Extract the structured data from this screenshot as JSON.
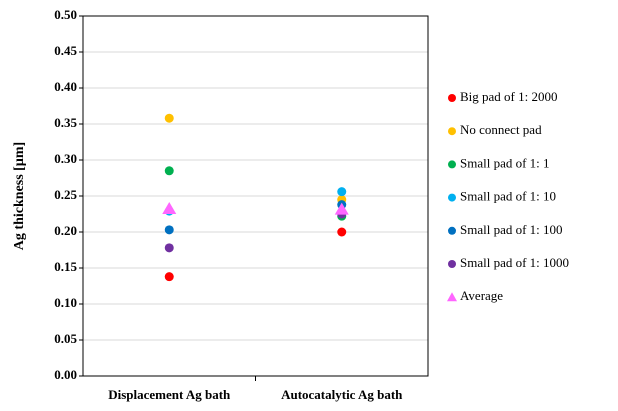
{
  "chart_data": {
    "type": "dot",
    "y_label": "Ag thickness [µm]",
    "categories": [
      "Displacement Ag bath",
      "Autocatalytic Ag bath"
    ],
    "ylim": [
      0,
      0.5
    ],
    "yticks": [
      {
        "value": 0,
        "label": "0.00"
      },
      {
        "value": 0.05,
        "label": "0.05"
      },
      {
        "value": 0.1,
        "label": "0.10"
      },
      {
        "value": 0.15,
        "label": "0.15"
      },
      {
        "value": 0.2,
        "label": "0.20"
      },
      {
        "value": 0.25,
        "label": "0.25"
      },
      {
        "value": 0.3,
        "label": "0.30"
      },
      {
        "value": 0.35,
        "label": "0.35"
      },
      {
        "value": 0.4,
        "label": "0.40"
      },
      {
        "value": 0.45,
        "label": "0.45"
      },
      {
        "value": 0.5,
        "label": "0.50"
      }
    ],
    "grid": true,
    "series": [
      {
        "name": "Big pad of 1: 2000",
        "color": "#ff0000",
        "marker": "circle",
        "values": [
          0.138,
          0.2
        ]
      },
      {
        "name": "No connect pad",
        "color": "#ffc000",
        "marker": "circle",
        "values": [
          0.358,
          0.245
        ]
      },
      {
        "name": "Small pad of 1: 1",
        "color": "#00b050",
        "marker": "circle",
        "values": [
          0.285,
          0.222
        ]
      },
      {
        "name": "Small pad of 1: 10",
        "color": "#00b0f0",
        "marker": "circle",
        "values": [
          0.229,
          0.256
        ]
      },
      {
        "name": "Small pad of 1: 100",
        "color": "#0070c0",
        "marker": "circle",
        "values": [
          0.203,
          0.238
        ]
      },
      {
        "name": "Small pad of 1: 1000",
        "color": "#7030a0",
        "marker": "circle",
        "values": [
          0.178,
          0.225
        ]
      },
      {
        "name": "Average",
        "color": "#ff66ff",
        "marker": "triangle",
        "values": [
          0.232,
          0.231
        ]
      }
    ]
  }
}
